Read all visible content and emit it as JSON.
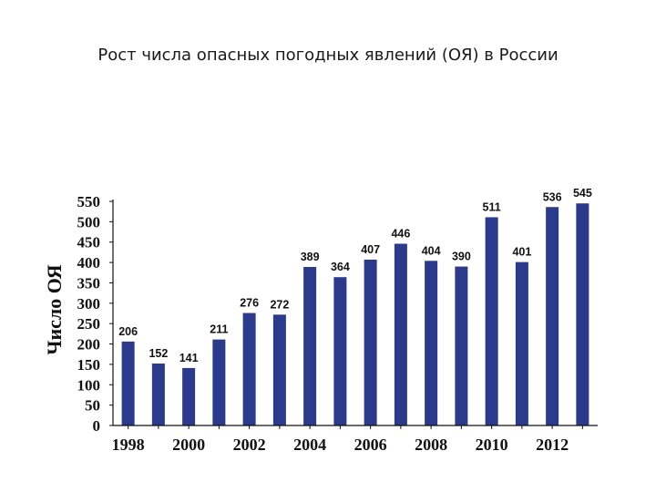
{
  "title": "Рост числа опасных погодных явлений (ОЯ) в России",
  "chart_data": {
    "type": "bar",
    "title": "Рост числа опасных погодных явлений (ОЯ) в России",
    "ylabel": "Число ОЯ",
    "xlabel": "",
    "categories": [
      "1998",
      "1999",
      "2000",
      "2001",
      "2002",
      "2003",
      "2004",
      "2005",
      "2006",
      "2007",
      "2008",
      "2009",
      "2010",
      "2011",
      "2012",
      "2013"
    ],
    "values": [
      206,
      152,
      141,
      211,
      276,
      272,
      389,
      364,
      407,
      446,
      404,
      390,
      511,
      401,
      536,
      545
    ],
    "data_labels": [
      "206",
      "152",
      "141",
      "211",
      "276",
      "272",
      "389",
      "364",
      "407",
      "446",
      "404",
      "390",
      "511",
      "401",
      "536",
      "545"
    ],
    "x_tick_labels": [
      "1998",
      "2000",
      "2002",
      "2004",
      "2006",
      "2008",
      "2010",
      "2012"
    ],
    "y_ticks": [
      "0",
      "50",
      "100",
      "150",
      "200",
      "250",
      "300",
      "350",
      "400",
      "450",
      "500",
      "550"
    ],
    "ylim": [
      0,
      550
    ],
    "bar_color": "#2b3a8a",
    "grid": false,
    "legend": "none"
  }
}
